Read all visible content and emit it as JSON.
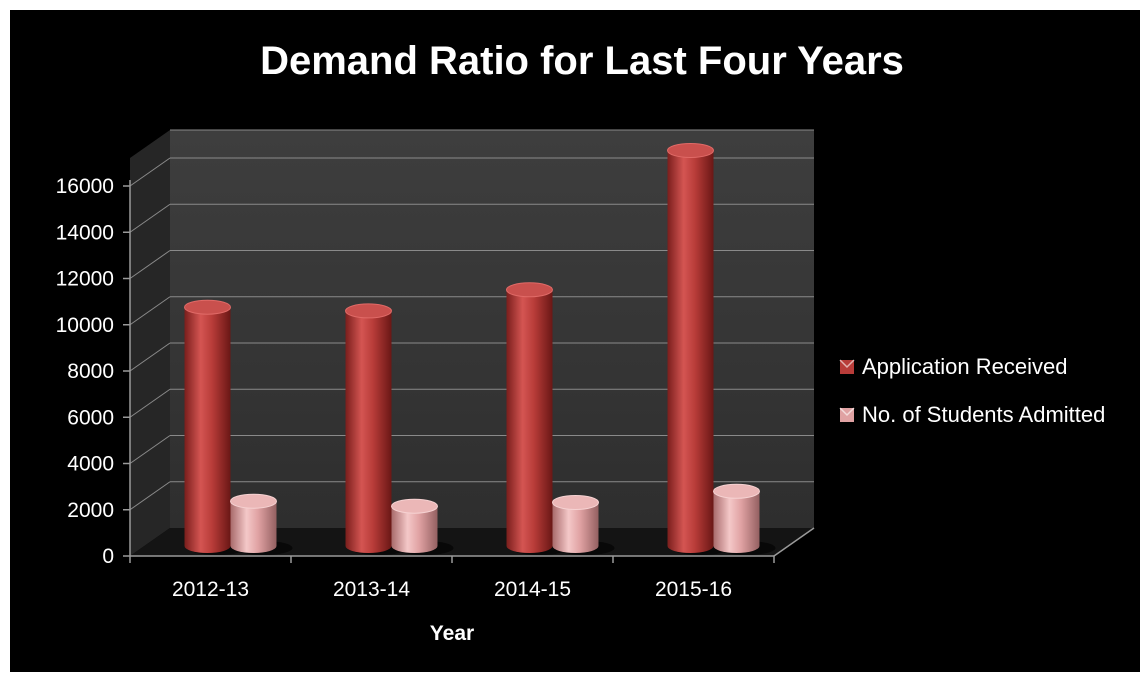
{
  "chart_data": {
    "type": "bar",
    "title": "Demand Ratio for Last Four Years",
    "xlabel": "Year",
    "ylabel": "",
    "categories": [
      "2012-13",
      "2013-14",
      "2014-15",
      "2015-16"
    ],
    "series": [
      {
        "name": "Application Received",
        "values": [
          9600,
          9450,
          10300,
          15900
        ],
        "color": "#b83c39"
      },
      {
        "name": "No. of Students Admitted",
        "values": [
          1800,
          1600,
          1750,
          2200
        ],
        "color": "#e0a2a3"
      }
    ],
    "ylim": [
      0,
      16000
    ],
    "yticks": [
      "0",
      "2000",
      "4000",
      "6000",
      "8000",
      "10000",
      "12000",
      "14000",
      "16000"
    ],
    "grid": true,
    "legend_position": "right",
    "style": "3d-cylinder",
    "background_color": "#000000",
    "wall_color": "#3a3a3a"
  }
}
